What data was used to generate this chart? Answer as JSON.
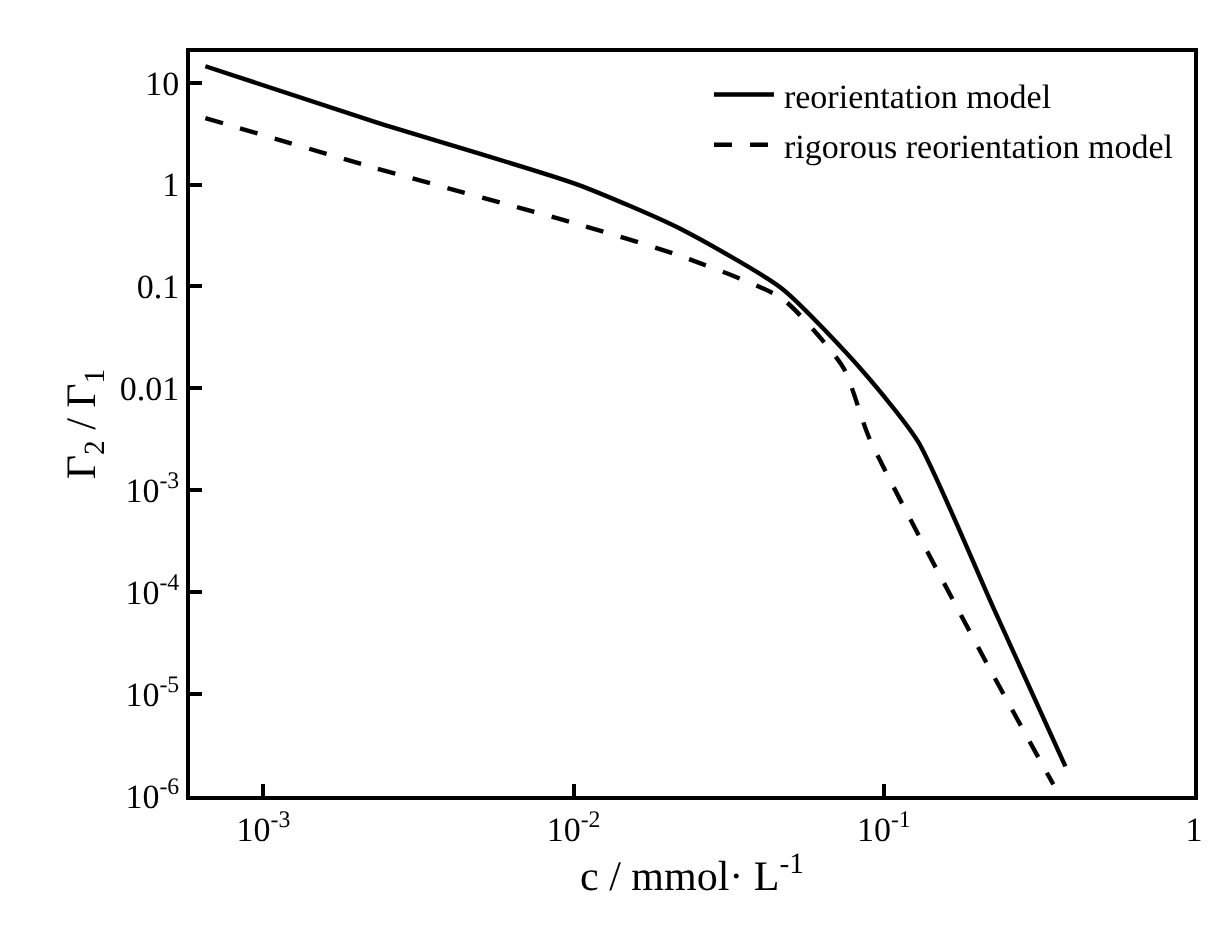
{
  "chart_data": {
    "type": "line",
    "xlabel": "c / mmol· L$^{-1}$",
    "ylabel": "Γ$_{2}$ / Γ$_{1}$",
    "log": "xy",
    "legend": "top right",
    "xlim": [
      0.00058,
      1
    ],
    "ylim": [
      1e-06,
      20
    ],
    "xticks": [
      {
        "value": 0.001,
        "label": "10$^{-3}$"
      },
      {
        "value": 0.01,
        "label": "10$^{-2}$"
      },
      {
        "value": 0.1,
        "label": "10$^{-1}$"
      },
      1
    ],
    "yticks": [
      {
        "value": 1e-06,
        "label": "10$^{-6}$"
      },
      {
        "value": 1e-05,
        "label": "10$^{-5}$"
      },
      {
        "value": 0.0001,
        "label": "10$^{-4}$"
      },
      {
        "value": 0.001,
        "label": "10$^{-3}$"
      },
      0.01,
      0.1,
      1,
      10
    ],
    "series": [
      {
        "name": "reorientation model",
        "color": "#000000",
        "line_style": "solid",
        "x": [
          0.00065,
          0.0023,
          0.0103,
          0.022,
          0.047,
          0.086,
          0.129,
          0.223,
          0.385
        ],
        "values": [
          14.5,
          4.1,
          1.0,
          0.37,
          0.095,
          0.0145,
          0.003,
          7.6e-05,
          1.95e-06
        ]
      },
      {
        "name": "rigorous reorientation model",
        "color": "#000000",
        "line_style": "dashed",
        "x": [
          0.00065,
          0.0023,
          0.0103,
          0.022,
          0.047,
          0.074,
          0.09,
          0.213,
          0.352
        ],
        "values": [
          4.5,
          1.45,
          0.41,
          0.2,
          0.076,
          0.016,
          0.0032,
          2.1e-05,
          1.3e-06
        ]
      }
    ]
  }
}
